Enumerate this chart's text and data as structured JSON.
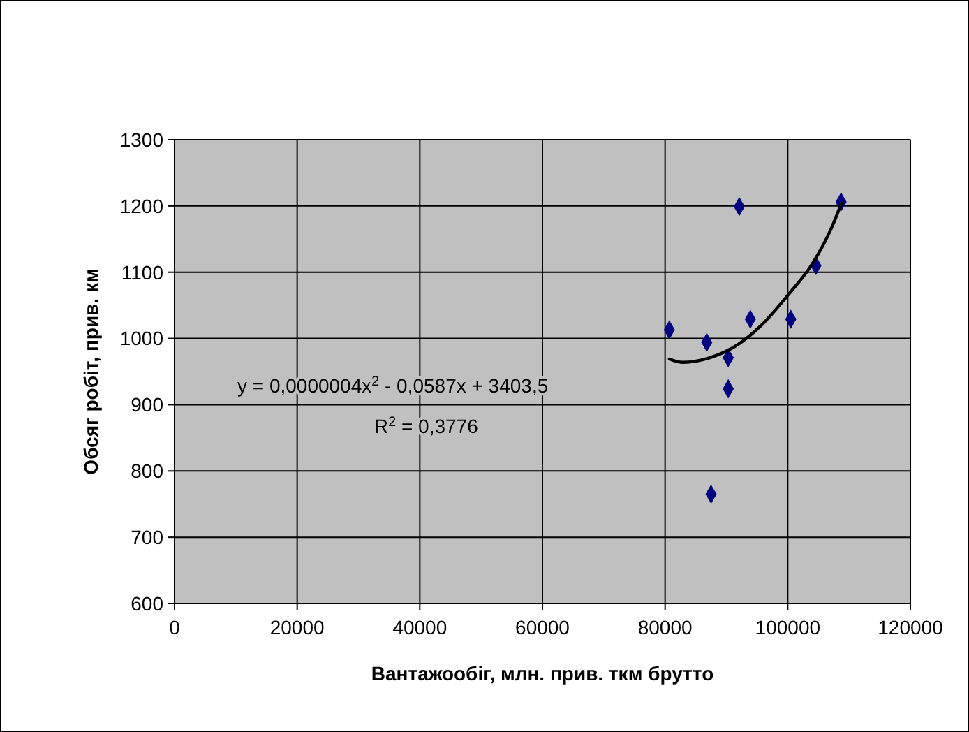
{
  "chart_data": {
    "type": "scatter",
    "xlabel": "Вантажообіг, млн. прив. ткм брутто",
    "ylabel": "Обсяг робіт, прив. км",
    "xlim": [
      0,
      120000
    ],
    "xticks": [
      0,
      20000,
      40000,
      60000,
      80000,
      100000,
      120000
    ],
    "ylim": [
      600,
      1300
    ],
    "yticks": [
      600,
      700,
      800,
      900,
      1000,
      1100,
      1200,
      1300
    ],
    "grid": true,
    "series": [
      {
        "type": "scatter",
        "color": "#000080",
        "marker": "diamond",
        "x": [
          80700,
          86800,
          90300,
          90300,
          87500,
          92100,
          93900,
          100500,
          104600,
          108700
        ],
        "values": [
          1013,
          994,
          971,
          924,
          765,
          1199,
          1029,
          1029,
          1110,
          1206
        ]
      },
      {
        "type": "line",
        "color": "#000000",
        "line_style": "solid",
        "x": [
          80700,
          82800,
          87300,
          91900,
          95700,
          100000,
          104100,
          107100,
          108800
        ],
        "values": [
          969,
          964,
          971,
          991,
          1020,
          1065,
          1114,
          1166,
          1205
        ]
      }
    ],
    "annotations": [
      "y = 0,0000004x$^{2}$ - 0,0587x + 3403,5",
      "R$^{2}$ = 0,3776"
    ]
  }
}
